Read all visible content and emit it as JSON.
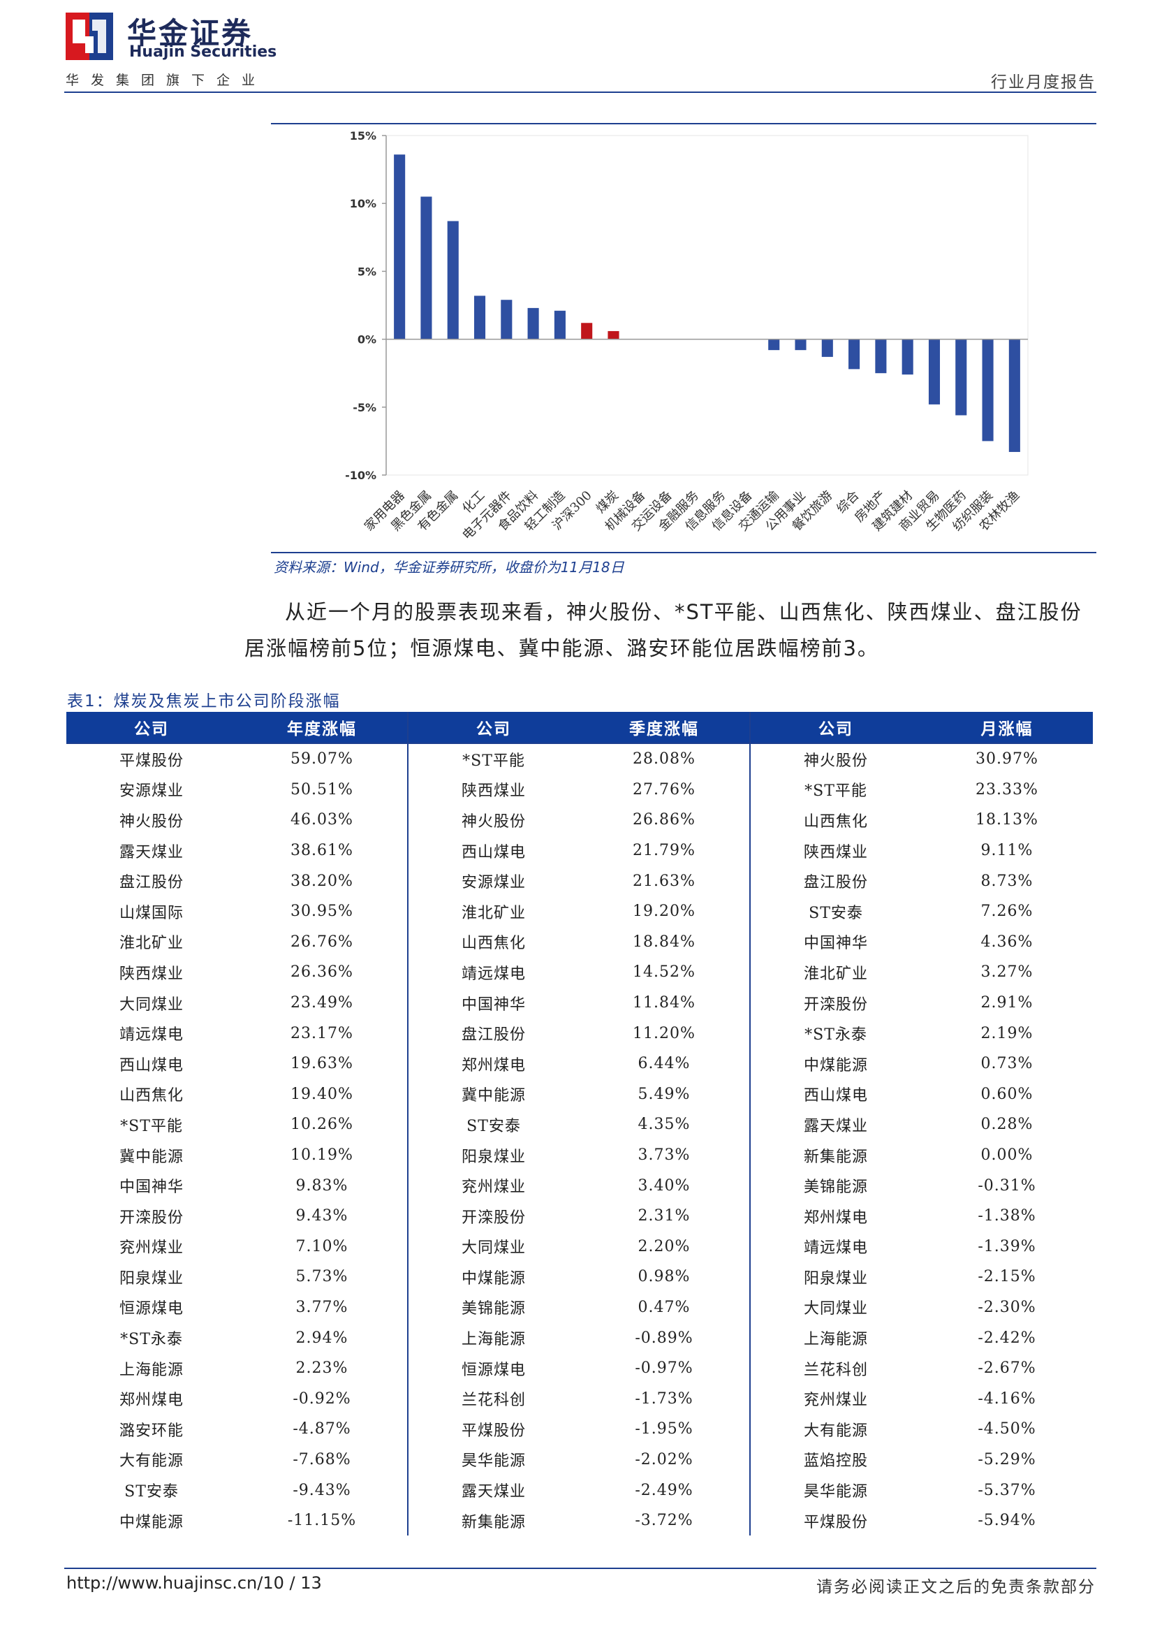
{
  "header": {
    "brand_cn": "华金证券",
    "brand_en": "Huajin Securities",
    "group_line": "华发集团旗下企业",
    "report_type": "行业月度报告"
  },
  "chart_data": {
    "type": "bar",
    "title": "",
    "xlabel": "",
    "ylabel": "",
    "ylim": [
      -10,
      15
    ],
    "yticks": [
      "15%",
      "10%",
      "5%",
      "0%",
      "-5%",
      "-10%"
    ],
    "tick_values": [
      15,
      10,
      5,
      0,
      -5,
      -10
    ],
    "categories": [
      "家用电器",
      "黑色金属",
      "有色金属",
      "化工",
      "电子元器件",
      "食品饮料",
      "轻工制造",
      "沪深300",
      "煤炭",
      "机械设备",
      "交运设备",
      "金融服务",
      "信息服务",
      "信息设备",
      "交通运输",
      "公用事业",
      "餐饮旅游",
      "综合",
      "房地产",
      "建筑建材",
      "商业贸易",
      "生物医药",
      "纺织服装",
      "农林牧渔"
    ],
    "values": [
      13.6,
      10.5,
      8.7,
      3.2,
      2.9,
      2.3,
      2.1,
      1.2,
      0.6,
      0.0,
      0.0,
      0.0,
      0.0,
      0.0,
      -0.8,
      -0.8,
      -1.3,
      -2.2,
      -2.5,
      -2.6,
      -4.8,
      -5.6,
      -7.5,
      -8.3
    ],
    "highlight_categories": [
      "沪深300",
      "煤炭"
    ],
    "bar_color": "#2e4fa1",
    "highlight_color": "#c0161b",
    "grid": false
  },
  "source": "资料来源：Wind，华金证券研究所，收盘价为11月18日",
  "paragraph": "从近一个月的股票表现来看，神火股份、*ST平能、山西焦化、陕西煤业、盘江股份居涨幅榜前5位；恒源煤电、冀中能源、潞安环能位居跌幅榜前3。",
  "table": {
    "caption": "表1：煤炭及焦炭上市公司阶段涨幅",
    "headers": [
      "公司",
      "年度涨幅",
      "公司",
      "季度涨幅",
      "公司",
      "月涨幅"
    ],
    "rows": [
      [
        "平煤股份",
        "59.07%",
        "*ST平能",
        "28.08%",
        "神火股份",
        "30.97%"
      ],
      [
        "安源煤业",
        "50.51%",
        "陕西煤业",
        "27.76%",
        "*ST平能",
        "23.33%"
      ],
      [
        "神火股份",
        "46.03%",
        "神火股份",
        "26.86%",
        "山西焦化",
        "18.13%"
      ],
      [
        "露天煤业",
        "38.61%",
        "西山煤电",
        "21.79%",
        "陕西煤业",
        "9.11%"
      ],
      [
        "盘江股份",
        "38.20%",
        "安源煤业",
        "21.63%",
        "盘江股份",
        "8.73%"
      ],
      [
        "山煤国际",
        "30.95%",
        "淮北矿业",
        "19.20%",
        "ST安泰",
        "7.26%"
      ],
      [
        "淮北矿业",
        "26.76%",
        "山西焦化",
        "18.84%",
        "中国神华",
        "4.36%"
      ],
      [
        "陕西煤业",
        "26.36%",
        "靖远煤电",
        "14.52%",
        "淮北矿业",
        "3.27%"
      ],
      [
        "大同煤业",
        "23.49%",
        "中国神华",
        "11.84%",
        "开滦股份",
        "2.91%"
      ],
      [
        "靖远煤电",
        "23.17%",
        "盘江股份",
        "11.20%",
        "*ST永泰",
        "2.19%"
      ],
      [
        "西山煤电",
        "19.63%",
        "郑州煤电",
        "6.44%",
        "中煤能源",
        "0.73%"
      ],
      [
        "山西焦化",
        "19.40%",
        "冀中能源",
        "5.49%",
        "西山煤电",
        "0.60%"
      ],
      [
        "*ST平能",
        "10.26%",
        "ST安泰",
        "4.35%",
        "露天煤业",
        "0.28%"
      ],
      [
        "冀中能源",
        "10.19%",
        "阳泉煤业",
        "3.73%",
        "新集能源",
        "0.00%"
      ],
      [
        "中国神华",
        "9.83%",
        "兖州煤业",
        "3.40%",
        "美锦能源",
        "-0.31%"
      ],
      [
        "开滦股份",
        "9.43%",
        "开滦股份",
        "2.31%",
        "郑州煤电",
        "-1.38%"
      ],
      [
        "兖州煤业",
        "7.10%",
        "大同煤业",
        "2.20%",
        "靖远煤电",
        "-1.39%"
      ],
      [
        "阳泉煤业",
        "5.73%",
        "中煤能源",
        "0.98%",
        "阳泉煤业",
        "-2.15%"
      ],
      [
        "恒源煤电",
        "3.77%",
        "美锦能源",
        "0.47%",
        "大同煤业",
        "-2.30%"
      ],
      [
        "*ST永泰",
        "2.94%",
        "上海能源",
        "-0.89%",
        "上海能源",
        "-2.42%"
      ],
      [
        "上海能源",
        "2.23%",
        "恒源煤电",
        "-0.97%",
        "兰花科创",
        "-2.67%"
      ],
      [
        "郑州煤电",
        "-0.92%",
        "兰花科创",
        "-1.73%",
        "兖州煤业",
        "-4.16%"
      ],
      [
        "潞安环能",
        "-4.87%",
        "平煤股份",
        "-1.95%",
        "大有能源",
        "-4.50%"
      ],
      [
        "大有能源",
        "-7.68%",
        "昊华能源",
        "-2.02%",
        "蓝焰控股",
        "-5.29%"
      ],
      [
        "ST安泰",
        "-9.43%",
        "露天煤业",
        "-2.49%",
        "昊华能源",
        "-5.37%"
      ],
      [
        "中煤能源",
        "-11.15%",
        "新集能源",
        "-3.72%",
        "平煤股份",
        "-5.94%"
      ]
    ]
  },
  "footer": {
    "url_page": "http://www.huajinsc.cn/10 / 13",
    "disclaimer": "请务必阅读正文之后的免责条款部分"
  },
  "colors": {
    "brand_blue": "#1d3f8f",
    "logo_red": "#d7191f",
    "table_header": "#0f3d9a"
  }
}
